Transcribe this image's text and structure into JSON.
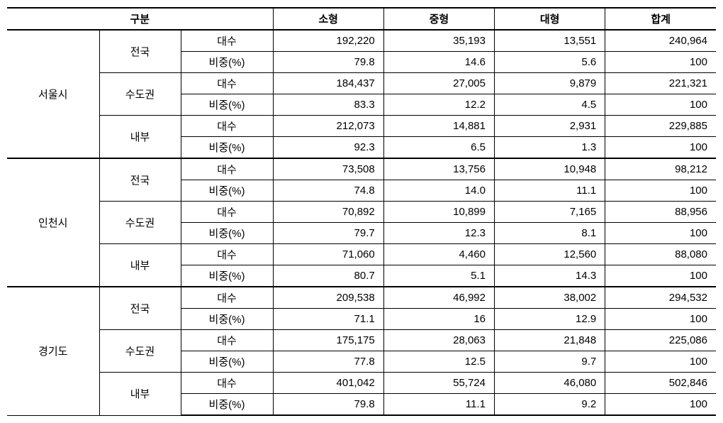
{
  "table": {
    "headers": {
      "category_group": "구분",
      "small": "소형",
      "medium": "중형",
      "large": "대형",
      "total": "합계"
    },
    "row_labels": {
      "count": "대수",
      "percent": "비중(%)"
    },
    "scopes": {
      "nation": "전국",
      "metro": "수도권",
      "internal": "내부"
    },
    "regions": [
      {
        "name": "서울시",
        "scopes": [
          {
            "key": "nation",
            "rows": [
              {
                "labelKey": "count",
                "small": "192,220",
                "medium": "35,193",
                "large": "13,551",
                "total": "240,964"
              },
              {
                "labelKey": "percent",
                "small": "79.8",
                "medium": "14.6",
                "large": "5.6",
                "total": "100"
              }
            ]
          },
          {
            "key": "metro",
            "rows": [
              {
                "labelKey": "count",
                "small": "184,437",
                "medium": "27,005",
                "large": "9,879",
                "total": "221,321"
              },
              {
                "labelKey": "percent",
                "small": "83.3",
                "medium": "12.2",
                "large": "4.5",
                "total": "100"
              }
            ]
          },
          {
            "key": "internal",
            "rows": [
              {
                "labelKey": "count",
                "small": "212,073",
                "medium": "14,881",
                "large": "2,931",
                "total": "229,885"
              },
              {
                "labelKey": "percent",
                "small": "92.3",
                "medium": "6.5",
                "large": "1.3",
                "total": "100"
              }
            ]
          }
        ]
      },
      {
        "name": "인천시",
        "scopes": [
          {
            "key": "nation",
            "rows": [
              {
                "labelKey": "count",
                "small": "73,508",
                "medium": "13,756",
                "large": "10,948",
                "total": "98,212"
              },
              {
                "labelKey": "percent",
                "small": "74.8",
                "medium": "14.0",
                "large": "11.1",
                "total": "100"
              }
            ]
          },
          {
            "key": "metro",
            "rows": [
              {
                "labelKey": "count",
                "small": "70,892",
                "medium": "10,899",
                "large": "7,165",
                "total": "88,956"
              },
              {
                "labelKey": "percent",
                "small": "79.7",
                "medium": "12.3",
                "large": "8.1",
                "total": "100"
              }
            ]
          },
          {
            "key": "internal",
            "rows": [
              {
                "labelKey": "count",
                "small": "71,060",
                "medium": "4,460",
                "large": "12,560",
                "total": "88,080"
              },
              {
                "labelKey": "percent",
                "small": "80.7",
                "medium": "5.1",
                "large": "14.3",
                "total": "100"
              }
            ]
          }
        ]
      },
      {
        "name": "경기도",
        "scopes": [
          {
            "key": "nation",
            "rows": [
              {
                "labelKey": "count",
                "small": "209,538",
                "medium": "46,992",
                "large": "38,002",
                "total": "294,532"
              },
              {
                "labelKey": "percent",
                "small": "71.1",
                "medium": "16",
                "large": "12.9",
                "total": "100"
              }
            ]
          },
          {
            "key": "metro",
            "rows": [
              {
                "labelKey": "count",
                "small": "175,175",
                "medium": "28,063",
                "large": "21,848",
                "total": "225,086"
              },
              {
                "labelKey": "percent",
                "small": "77.8",
                "medium": "12.5",
                "large": "9.7",
                "total": "100"
              }
            ]
          },
          {
            "key": "internal",
            "rows": [
              {
                "labelKey": "count",
                "small": "401,042",
                "medium": "55,724",
                "large": "46,080",
                "total": "502,846"
              },
              {
                "labelKey": "percent",
                "small": "79.8",
                "medium": "11.1",
                "large": "9.2",
                "total": "100"
              }
            ]
          }
        ]
      }
    ],
    "styling": {
      "background_color": "#ffffff",
      "border_color": "#000000",
      "font_family": "Malgun Gothic",
      "header_fontsize": 15,
      "cell_fontsize": 15,
      "header_fontweight": "bold",
      "cell_fontweight": "normal",
      "thick_border_width": 2,
      "thin_border_width": 1,
      "col_widths_percent": {
        "cat1": 13,
        "cat2": 11.5,
        "cat3": 13,
        "value_each": 15.625
      }
    }
  }
}
